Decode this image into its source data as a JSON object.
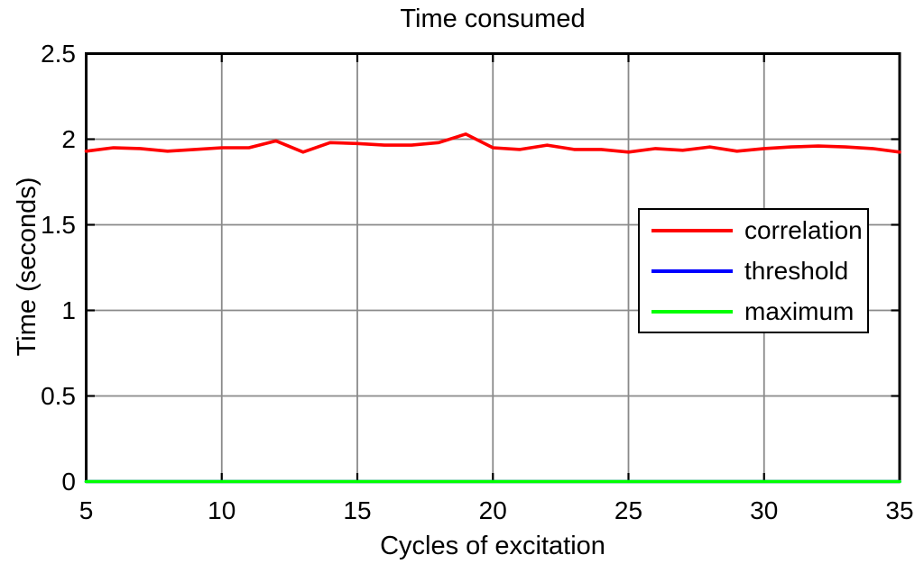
{
  "chart_data": {
    "type": "line",
    "title": "Time consumed",
    "xlabel": "Cycles of excitation",
    "ylabel": "Time (seconds)",
    "xlim": [
      5,
      35
    ],
    "ylim": [
      0,
      2.5
    ],
    "x_ticks": [
      5,
      10,
      15,
      20,
      25,
      30,
      35
    ],
    "y_ticks": [
      0,
      0.5,
      1,
      1.5,
      2,
      2.5
    ],
    "grid": true,
    "legend_position": "middle-right",
    "x": [
      5,
      6,
      7,
      8,
      9,
      10,
      11,
      12,
      13,
      14,
      15,
      16,
      17,
      18,
      19,
      20,
      21,
      22,
      23,
      24,
      25,
      26,
      27,
      28,
      29,
      30,
      31,
      32,
      33,
      34,
      35
    ],
    "series": [
      {
        "name": "correlation",
        "color": "#ff0000",
        "values": [
          1.93,
          1.95,
          1.945,
          1.93,
          1.94,
          1.95,
          1.95,
          1.99,
          1.925,
          1.98,
          1.975,
          1.965,
          1.965,
          1.98,
          2.03,
          1.95,
          1.94,
          1.965,
          1.94,
          1.94,
          1.925,
          1.945,
          1.935,
          1.955,
          1.93,
          1.945,
          1.955,
          1.96,
          1.955,
          1.945,
          1.925
        ]
      },
      {
        "name": "threshold",
        "color": "#0000ff",
        "values": [
          0,
          0,
          0,
          0,
          0,
          0,
          0,
          0,
          0,
          0,
          0,
          0,
          0,
          0,
          0,
          0,
          0,
          0,
          0,
          0,
          0,
          0,
          0,
          0,
          0,
          0,
          0,
          0,
          0,
          0,
          0
        ]
      },
      {
        "name": "maximum",
        "color": "#00ff00",
        "values": [
          0,
          0,
          0,
          0,
          0,
          0,
          0,
          0,
          0,
          0,
          0,
          0,
          0,
          0,
          0,
          0,
          0,
          0,
          0,
          0,
          0,
          0,
          0,
          0,
          0,
          0,
          0,
          0,
          0,
          0,
          0
        ]
      }
    ],
    "colors": {
      "axis": "#000000",
      "grid": "#8a8a8a",
      "background": "#ffffff",
      "text": "#000000"
    }
  }
}
